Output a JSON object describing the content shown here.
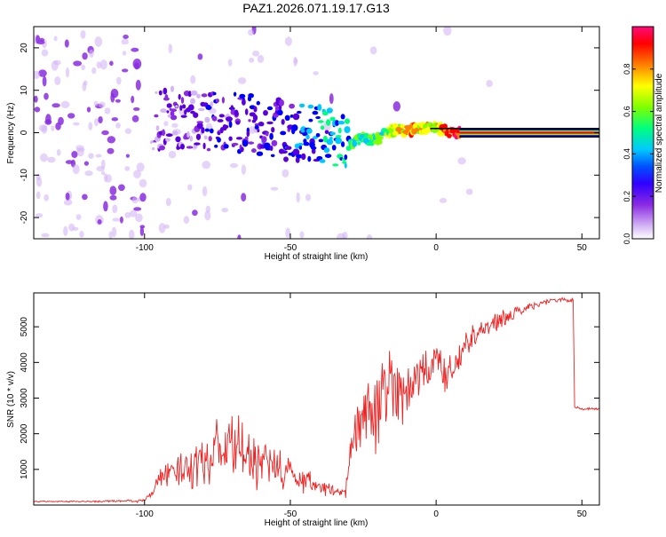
{
  "title": "PAZ1.2026.071.19.17.G13",
  "colors": {
    "snr_line": "#ee2222",
    "colormap": [
      "#ffffff",
      "#d4b5f5",
      "#8a2be2",
      "#5a00e0",
      "#0000ff",
      "#00c8ff",
      "#00ff7f",
      "#7fff00",
      "#ffff00",
      "#ff8000",
      "#ff0000",
      "#ff0a7a"
    ]
  },
  "chart_data": [
    {
      "type": "heatmap",
      "title": "PAZ1.2026.071.19.17.G13",
      "xlabel": "Height of straight line (km)",
      "ylabel": "Frequency (Hz)",
      "xlim": [
        -138,
        56
      ],
      "ylim": [
        -25,
        25
      ],
      "xticks": [
        -100,
        -50,
        0,
        50
      ],
      "yticks": [
        -20,
        -10,
        0,
        10,
        20
      ],
      "colorbar": {
        "label": "Normalized spectral amplitude",
        "range": [
          0,
          1
        ],
        "ticks": [
          "0.0",
          "0.2",
          "0.4",
          "0.6",
          "0.8"
        ]
      },
      "ridge": {
        "x": [
          -97,
          -90,
          -80,
          -70,
          -60,
          -50,
          -42,
          -36,
          -30,
          -25,
          -20,
          -15,
          -10,
          -5,
          0,
          5,
          10,
          20,
          30,
          40,
          50,
          56
        ],
        "center_hz": [
          3,
          3.5,
          3,
          2.5,
          1.5,
          0.5,
          0,
          -1,
          -2.5,
          -1.5,
          -1.5,
          0.5,
          0.5,
          1,
          1.5,
          0,
          0,
          0,
          0,
          0,
          0,
          0
        ],
        "amplitude": [
          0.15,
          0.2,
          0.22,
          0.25,
          0.3,
          0.3,
          0.4,
          0.45,
          0.5,
          0.55,
          0.55,
          0.65,
          0.8,
          0.75,
          0.7,
          0.9,
          0.95,
          0.95,
          0.95,
          0.95,
          0.95,
          0.9
        ]
      }
    },
    {
      "type": "line",
      "xlabel": "Height of straight line (km)",
      "ylabel": "SNR (10 * v/v)",
      "xlim": [
        -138,
        56
      ],
      "ylim": [
        0,
        5950
      ],
      "xticks": [
        -100,
        -50,
        0,
        50
      ],
      "yticks": [
        1000,
        2000,
        3000,
        4000,
        5000
      ],
      "series": [
        {
          "name": "SNR",
          "x": [
            -138,
            -120,
            -100,
            -97,
            -95,
            -90,
            -85,
            -80,
            -75,
            -70,
            -65,
            -60,
            -55,
            -50,
            -45,
            -40,
            -35,
            -33,
            -31,
            -29,
            -27,
            -25,
            -22,
            -20,
            -18,
            -15,
            -12,
            -10,
            -8,
            -5,
            -2,
            0,
            3,
            6,
            9,
            12,
            15,
            20,
            25,
            30,
            35,
            40,
            45,
            47,
            47.5,
            50,
            56
          ],
          "y": [
            100,
            100,
            120,
            400,
            800,
            900,
            1100,
            1300,
            1500,
            1700,
            1400,
            1200,
            1000,
            900,
            700,
            500,
            400,
            350,
            400,
            1500,
            2200,
            2300,
            2500,
            2600,
            3200,
            3500,
            3300,
            3000,
            3400,
            3800,
            3700,
            4400,
            3600,
            3900,
            4300,
            4700,
            4900,
            5100,
            5300,
            5500,
            5650,
            5750,
            5750,
            5750,
            2750,
            2700,
            2700
          ],
          "spread": [
            20,
            25,
            60,
            200,
            350,
            500,
            700,
            900,
            1000,
            1100,
            1000,
            900,
            700,
            600,
            450,
            300,
            200,
            120,
            250,
            900,
            1200,
            1300,
            1400,
            1300,
            1200,
            1100,
            1000,
            900,
            850,
            800,
            700,
            650,
            600,
            550,
            500,
            450,
            400,
            300,
            250,
            150,
            100,
            80,
            80,
            80,
            50,
            40,
            40
          ]
        }
      ]
    }
  ]
}
